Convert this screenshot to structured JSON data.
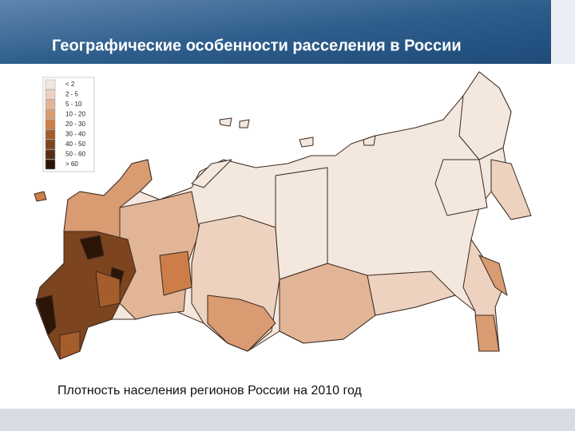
{
  "header": {
    "title": "Географические особенности расселения в России"
  },
  "legend": {
    "items": [
      {
        "label": "< 2",
        "color": "#f4e7dd"
      },
      {
        "label": "2 - 5",
        "color": "#ecd2bf"
      },
      {
        "label": "5 - 10",
        "color": "#e2b597"
      },
      {
        "label": "10 - 20",
        "color": "#d99b72"
      },
      {
        "label": "20 - 30",
        "color": "#cd7d48"
      },
      {
        "label": "30 - 40",
        "color": "#a55d2c"
      },
      {
        "label": "40 - 50",
        "color": "#7d4420"
      },
      {
        "label": "50 - 60",
        "color": "#592d14"
      },
      {
        "label": "> 60",
        "color": "#2c1507"
      }
    ]
  },
  "caption": "Плотность населения регионов России на 2010 год"
}
